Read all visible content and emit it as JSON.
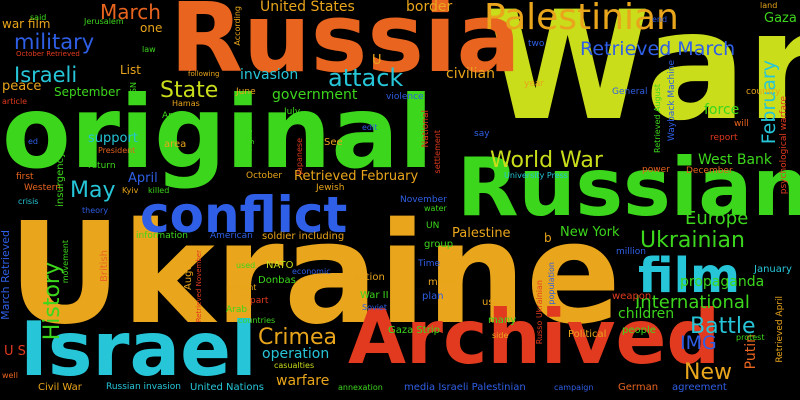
{
  "colors": {
    "background": "#000000",
    "palette": [
      "#e8641f",
      "#c9dd1a",
      "#3cd61c",
      "#2f5fe6",
      "#e9a51b",
      "#26c6d8",
      "#e23a1e",
      "#1fc97c"
    ]
  },
  "words": [
    {
      "text": "War",
      "color": "#c9dd1a"
    },
    {
      "text": "Ukraine",
      "color": "#e9a51b"
    },
    {
      "text": "Russia",
      "color": "#e8641f"
    },
    {
      "text": "original",
      "color": "#3cd61c"
    },
    {
      "text": "Russian",
      "color": "#3cd61c"
    },
    {
      "text": "Archived",
      "color": "#e23a1e"
    },
    {
      "text": "Israel",
      "color": "#26c6d8"
    },
    {
      "text": "conflict",
      "color": "#2f5fe6"
    },
    {
      "text": "Palestinian",
      "color": "#e9a51b"
    },
    {
      "text": "film",
      "color": "#26c6d8"
    },
    {
      "text": "Retrieved March",
      "color": "#2f5fe6"
    },
    {
      "text": "World War",
      "color": "#c9dd1a"
    },
    {
      "text": "Ukrainian",
      "color": "#3cd61c"
    },
    {
      "text": "State",
      "color": "#c9dd1a"
    },
    {
      "text": "attack",
      "color": "#26c6d8"
    },
    {
      "text": "military",
      "color": "#2f5fe6"
    },
    {
      "text": "Israeli",
      "color": "#26c6d8"
    },
    {
      "text": "March",
      "color": "#e8641f"
    },
    {
      "text": "History",
      "color": "#3cd61c"
    },
    {
      "text": "May",
      "color": "#26c6d8"
    },
    {
      "text": "Battle",
      "color": "#26c6d8"
    },
    {
      "text": "Crimea",
      "color": "#e9a51b"
    },
    {
      "text": "New",
      "color": "#e9a51b"
    },
    {
      "text": "IMG",
      "color": "#2f5fe6"
    },
    {
      "text": "International",
      "color": "#3cd61c"
    },
    {
      "text": "Europe",
      "color": "#3cd61c"
    },
    {
      "text": "February",
      "color": "#26c6d8"
    },
    {
      "text": "border",
      "color": "#e9a51b"
    },
    {
      "text": "United States",
      "color": "#e9a51b"
    },
    {
      "text": "Gaza",
      "color": "#3cd61c"
    },
    {
      "text": "civilian",
      "color": "#e9a51b"
    },
    {
      "text": "invasion",
      "color": "#26c6d8"
    },
    {
      "text": "government",
      "color": "#3cd61c"
    },
    {
      "text": "Retrieved February",
      "color": "#e9a51b"
    },
    {
      "text": "West Bank",
      "color": "#3cd61c"
    },
    {
      "text": "force",
      "color": "#3cd61c"
    },
    {
      "text": "propaganda",
      "color": "#3cd61c"
    },
    {
      "text": "children",
      "color": "#3cd61c"
    },
    {
      "text": "operation",
      "color": "#26c6d8"
    },
    {
      "text": "warfare",
      "color": "#e9a51b"
    },
    {
      "text": "New York",
      "color": "#3cd61c"
    },
    {
      "text": "Palestine",
      "color": "#e9a51b"
    },
    {
      "text": "Putin",
      "color": "#e8641f"
    },
    {
      "text": "April",
      "color": "#2f5fe6"
    },
    {
      "text": "support",
      "color": "#26c6d8"
    },
    {
      "text": "peace",
      "color": "#e9a51b"
    },
    {
      "text": "September",
      "color": "#3cd61c"
    },
    {
      "text": "List",
      "color": "#e9a51b"
    },
    {
      "text": "war film",
      "color": "#e9a51b"
    },
    {
      "text": "one",
      "color": "#e9a51b"
    },
    {
      "text": "U S",
      "color": "#e23a1e"
    },
    {
      "text": "Civil War",
      "color": "#e9a51b"
    },
    {
      "text": "United Nations",
      "color": "#26c6d8"
    },
    {
      "text": "Russian invasion",
      "color": "#26c6d8"
    },
    {
      "text": "Gaza Strip",
      "color": "#3cd61c"
    },
    {
      "text": "media Israeli Palestinian",
      "color": "#2f5fe6"
    },
    {
      "text": "Donbas",
      "color": "#3cd61c"
    },
    {
      "text": "NATO",
      "color": "#c9dd1a"
    },
    {
      "text": "War II",
      "color": "#3cd61c"
    },
    {
      "text": "action",
      "color": "#e9a51b"
    },
    {
      "text": "made",
      "color": "#e9a51b"
    },
    {
      "text": "plan",
      "color": "#2f5fe6"
    },
    {
      "text": "use",
      "color": "#e9a51b"
    },
    {
      "text": "many",
      "color": "#3cd61c"
    },
    {
      "text": "weapon",
      "color": "#e23a1e"
    },
    {
      "text": "Political",
      "color": "#e9a51b"
    },
    {
      "text": "people",
      "color": "#3cd61c"
    },
    {
      "text": "protest",
      "color": "#3cd61c"
    },
    {
      "text": "January",
      "color": "#26c6d8"
    },
    {
      "text": "German",
      "color": "#e8641f"
    },
    {
      "text": "agreement",
      "color": "#2f5fe6"
    },
    {
      "text": "annexation",
      "color": "#3cd61c"
    },
    {
      "text": "casualties",
      "color": "#c9dd1a"
    },
    {
      "text": "campaign",
      "color": "#2f5fe6"
    },
    {
      "text": "soldier including",
      "color": "#e9a51b"
    },
    {
      "text": "information",
      "color": "#3cd61c"
    },
    {
      "text": "American",
      "color": "#2f5fe6"
    },
    {
      "text": "Jewish",
      "color": "#e9a51b"
    },
    {
      "text": "October",
      "color": "#e9a51b"
    },
    {
      "text": "killed",
      "color": "#3cd61c"
    },
    {
      "text": "Kyiv",
      "color": "#e9a51b"
    },
    {
      "text": "Western",
      "color": "#e8641f"
    },
    {
      "text": "first",
      "color": "#e8641f"
    },
    {
      "text": "crisis",
      "color": "#26c6d8"
    },
    {
      "text": "theory",
      "color": "#2f5fe6"
    },
    {
      "text": "return",
      "color": "#3cd61c"
    },
    {
      "text": "President",
      "color": "#e8641f"
    },
    {
      "text": "area",
      "color": "#e9a51b"
    },
    {
      "text": "Army",
      "color": "#3cd61c"
    },
    {
      "text": "Hamas",
      "color": "#e9a51b"
    },
    {
      "text": "following",
      "color": "#e9a51b"
    },
    {
      "text": "June",
      "color": "#e9a51b"
    },
    {
      "text": "July",
      "color": "#3cd61c"
    },
    {
      "text": "See",
      "color": "#e9a51b"
    },
    {
      "text": "University Press",
      "color": "#26c6d8"
    },
    {
      "text": "water",
      "color": "#3cd61c"
    },
    {
      "text": "group",
      "color": "#3cd61c"
    },
    {
      "text": "UN",
      "color": "#3cd61c"
    },
    {
      "text": "November",
      "color": "#2f5fe6"
    },
    {
      "text": "b",
      "color": "#e9a51b"
    },
    {
      "text": "million",
      "color": "#2f5fe6"
    },
    {
      "text": "power",
      "color": "#e8641f"
    },
    {
      "text": "December",
      "color": "#e8641f"
    },
    {
      "text": "country",
      "color": "#e9a51b"
    },
    {
      "text": "General",
      "color": "#2f5fe6"
    },
    {
      "text": "report",
      "color": "#e23a1e"
    },
    {
      "text": "will",
      "color": "#e8641f"
    },
    {
      "text": "say",
      "color": "#2f5fe6"
    },
    {
      "text": "edit",
      "color": "#2f5fe6"
    },
    {
      "text": "violence",
      "color": "#2f5fe6"
    },
    {
      "text": "two",
      "color": "#2f5fe6"
    },
    {
      "text": "year",
      "color": "#e9a51b"
    },
    {
      "text": "land",
      "color": "#e9a51b"
    },
    {
      "text": "end",
      "color": "#2f5fe6"
    },
    {
      "text": "said",
      "color": "#3cd61c"
    },
    {
      "text": "Jerusalem",
      "color": "#3cd61c"
    },
    {
      "text": "October Retrieved",
      "color": "#e23a1e"
    },
    {
      "text": "law",
      "color": "#3cd61c"
    },
    {
      "text": "article",
      "color": "#e23a1e"
    },
    {
      "text": "ed",
      "color": "#2f5fe6"
    },
    {
      "text": "economic",
      "color": "#2f5fe6"
    },
    {
      "text": "Time",
      "color": "#2f5fe6"
    },
    {
      "text": "Soviet",
      "color": "#2f5fe6"
    },
    {
      "text": "Arab",
      "color": "#3cd61c"
    },
    {
      "text": "present",
      "color": "#e9a51b"
    },
    {
      "text": "countries",
      "color": "#3cd61c"
    },
    {
      "text": "part",
      "color": "#e23a1e"
    },
    {
      "text": "used",
      "color": "#3cd61c"
    },
    {
      "text": "side",
      "color": "#e9a51b"
    },
    {
      "text": "well",
      "color": "#e8641f"
    },
    {
      "text": "March Retrieved",
      "color": "#2f5fe6"
    },
    {
      "text": "insurgency",
      "color": "#3cd61c"
    },
    {
      "text": "movement",
      "color": "#3cd61c"
    },
    {
      "text": "British",
      "color": "#e8641f"
    },
    {
      "text": "August",
      "color": "#e9a51b"
    },
    {
      "text": "Retrieved November",
      "color": "#e23a1e"
    },
    {
      "text": "right",
      "color": "#3cd61c"
    },
    {
      "text": "Japanese",
      "color": "#e23a1e"
    },
    {
      "text": "National",
      "color": "#e23a1e"
    },
    {
      "text": "settlement",
      "color": "#e23a1e"
    },
    {
      "text": "According",
      "color": "#e9a51b"
    },
    {
      "text": "U",
      "color": "#e9a51b"
    },
    {
      "text": "NSN",
      "color": "#3cd61c"
    },
    {
      "text": "Wayback Machine",
      "color": "#2f5fe6"
    },
    {
      "text": "Retrieved August",
      "color": "#3cd61c"
    },
    {
      "text": "psychological warfare",
      "color": "#e23a1e"
    },
    {
      "text": "Retrieved April",
      "color": "#e9a51b"
    },
    {
      "text": "population",
      "color": "#2f5fe6"
    },
    {
      "text": "Russo Ukrainian",
      "color": "#e23a1e"
    }
  ]
}
